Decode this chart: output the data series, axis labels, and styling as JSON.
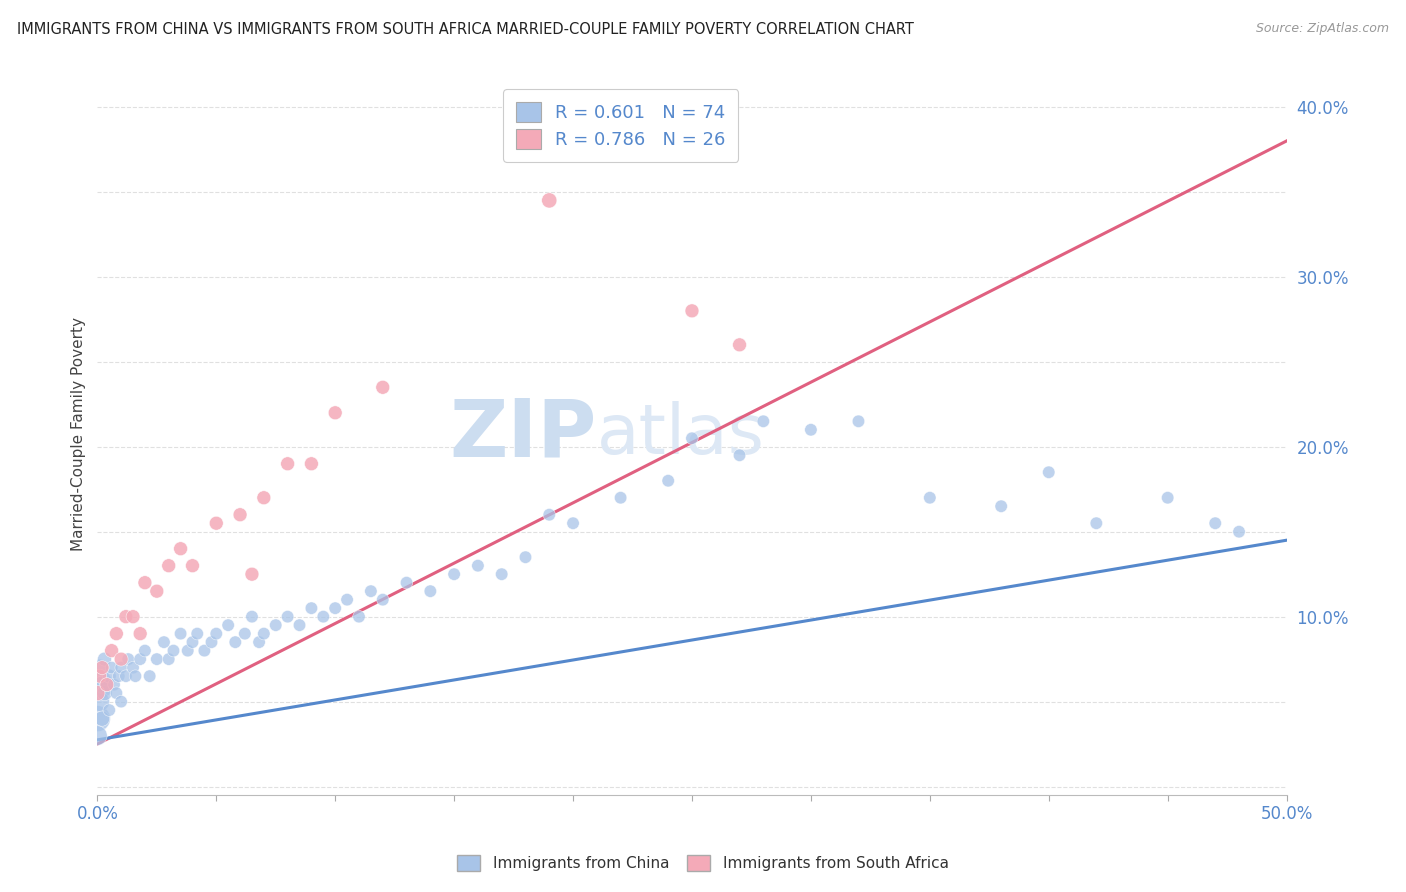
{
  "title": "IMMIGRANTS FROM CHINA VS IMMIGRANTS FROM SOUTH AFRICA MARRIED-COUPLE FAMILY POVERTY CORRELATION CHART",
  "source": "Source: ZipAtlas.com",
  "ylabel": "Married-Couple Family Poverty",
  "legend_china": "Immigrants from China",
  "legend_sa": "Immigrants from South Africa",
  "R_china": "0.601",
  "N_china": "74",
  "R_sa": "0.786",
  "N_sa": "26",
  "watermark_zip": "ZIP",
  "watermark_atlas": "atlas",
  "china_color": "#a8c4e8",
  "sa_color": "#f4aab8",
  "china_line_color": "#5588cc",
  "sa_line_color": "#e06080",
  "background": "#ffffff",
  "grid_color": "#e0e0e0",
  "xlim": [
    0.0,
    0.5
  ],
  "ylim": [
    -0.005,
    0.42
  ],
  "china_x": [
    0.0,
    0.0,
    0.0,
    0.001,
    0.001,
    0.002,
    0.002,
    0.003,
    0.003,
    0.004,
    0.005,
    0.005,
    0.006,
    0.007,
    0.008,
    0.009,
    0.01,
    0.01,
    0.012,
    0.013,
    0.015,
    0.016,
    0.018,
    0.02,
    0.022,
    0.025,
    0.028,
    0.03,
    0.032,
    0.035,
    0.038,
    0.04,
    0.042,
    0.045,
    0.048,
    0.05,
    0.055,
    0.058,
    0.062,
    0.065,
    0.068,
    0.07,
    0.075,
    0.08,
    0.085,
    0.09,
    0.095,
    0.1,
    0.105,
    0.11,
    0.115,
    0.12,
    0.13,
    0.14,
    0.15,
    0.16,
    0.17,
    0.18,
    0.19,
    0.2,
    0.22,
    0.24,
    0.25,
    0.27,
    0.28,
    0.3,
    0.32,
    0.35,
    0.38,
    0.4,
    0.42,
    0.45,
    0.47,
    0.48
  ],
  "china_y": [
    0.06,
    0.04,
    0.03,
    0.05,
    0.07,
    0.06,
    0.04,
    0.055,
    0.075,
    0.06,
    0.065,
    0.045,
    0.07,
    0.06,
    0.055,
    0.065,
    0.07,
    0.05,
    0.065,
    0.075,
    0.07,
    0.065,
    0.075,
    0.08,
    0.065,
    0.075,
    0.085,
    0.075,
    0.08,
    0.09,
    0.08,
    0.085,
    0.09,
    0.08,
    0.085,
    0.09,
    0.095,
    0.085,
    0.09,
    0.1,
    0.085,
    0.09,
    0.095,
    0.1,
    0.095,
    0.105,
    0.1,
    0.105,
    0.11,
    0.1,
    0.115,
    0.11,
    0.12,
    0.115,
    0.125,
    0.13,
    0.125,
    0.135,
    0.16,
    0.155,
    0.17,
    0.18,
    0.205,
    0.195,
    0.215,
    0.21,
    0.215,
    0.17,
    0.165,
    0.185,
    0.155,
    0.17,
    0.155,
    0.15
  ],
  "china_sizes": [
    500,
    350,
    200,
    200,
    150,
    150,
    120,
    120,
    100,
    100,
    100,
    80,
    80,
    80,
    80,
    80,
    80,
    80,
    80,
    80,
    80,
    80,
    80,
    80,
    80,
    80,
    80,
    80,
    80,
    80,
    80,
    80,
    80,
    80,
    80,
    80,
    80,
    80,
    80,
    80,
    80,
    80,
    80,
    80,
    80,
    80,
    80,
    80,
    80,
    80,
    80,
    80,
    80,
    80,
    80,
    80,
    80,
    80,
    80,
    80,
    80,
    80,
    80,
    80,
    80,
    80,
    80,
    80,
    80,
    80,
    80,
    80,
    80,
    80
  ],
  "sa_x": [
    0.0,
    0.001,
    0.002,
    0.004,
    0.006,
    0.008,
    0.01,
    0.012,
    0.015,
    0.018,
    0.02,
    0.025,
    0.03,
    0.035,
    0.04,
    0.05,
    0.06,
    0.065,
    0.07,
    0.08,
    0.09,
    0.1,
    0.12,
    0.19,
    0.25,
    0.27
  ],
  "sa_y": [
    0.055,
    0.065,
    0.07,
    0.06,
    0.08,
    0.09,
    0.075,
    0.1,
    0.1,
    0.09,
    0.12,
    0.115,
    0.13,
    0.14,
    0.13,
    0.155,
    0.16,
    0.125,
    0.17,
    0.19,
    0.19,
    0.22,
    0.235,
    0.345,
    0.28,
    0.26
  ],
  "sa_sizes": [
    120,
    100,
    100,
    100,
    100,
    100,
    100,
    100,
    100,
    100,
    100,
    100,
    100,
    100,
    100,
    100,
    100,
    100,
    100,
    100,
    100,
    100,
    100,
    120,
    100,
    100
  ],
  "china_reg": [
    0.0,
    0.5,
    0.0275,
    0.145
  ],
  "sa_reg": [
    0.0,
    0.5,
    0.025,
    0.38
  ]
}
